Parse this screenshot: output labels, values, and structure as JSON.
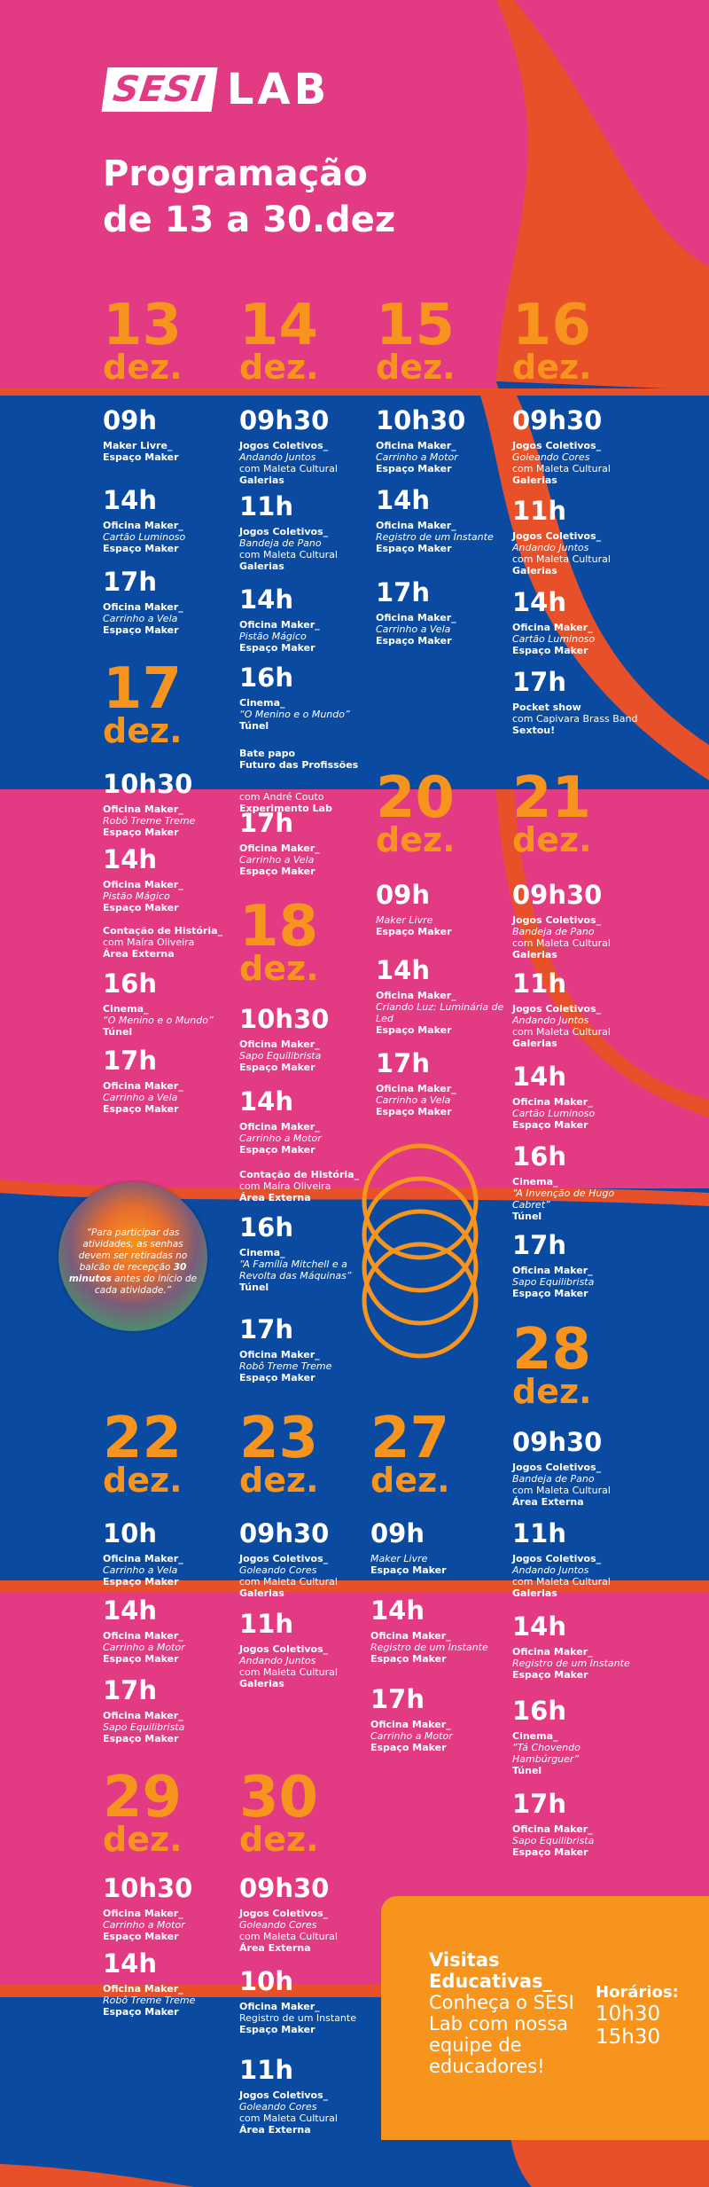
{
  "logo": {
    "sesi": "SESI",
    "lab": "LAB"
  },
  "title": {
    "line1": "Programação",
    "line2": "de 13 a 30.dez"
  },
  "month": "dez.",
  "days": [
    {
      "n": "13"
    },
    {
      "n": "14"
    },
    {
      "n": "15"
    },
    {
      "n": "16"
    },
    {
      "n": "17"
    },
    {
      "n": "18"
    },
    {
      "n": "20"
    },
    {
      "n": "21"
    },
    {
      "n": "22"
    },
    {
      "n": "23"
    },
    {
      "n": "27"
    },
    {
      "n": "28"
    },
    {
      "n": "29"
    },
    {
      "n": "30"
    }
  ],
  "events": [
    {
      "t": "09h",
      "a": "Maker Livre_",
      "d": "",
      "w": "",
      "p": "Espaço Maker"
    },
    {
      "t": "14h",
      "a": "Oficina Maker_",
      "d": "Cartão Luminoso",
      "w": "",
      "p": "Espaço Maker"
    },
    {
      "t": "17h",
      "a": "Oficina Maker_",
      "d": "Carrinho a Vela",
      "w": "",
      "p": "Espaço Maker"
    },
    {
      "t": "09h30",
      "a": "Jogos Coletivos_",
      "d": "Andando Juntos",
      "w": "com Maleta Cultural",
      "p": "Galerias"
    },
    {
      "t": "11h",
      "a": "Jogos Coletivos_",
      "d": "Bandeja de Pano",
      "w": "com Maleta Cultural",
      "p": "Galerias"
    },
    {
      "t": "14h",
      "a": "Oficina Maker_",
      "d": "Pistão Mágico",
      "w": "",
      "p": "Espaço Maker"
    },
    {
      "t": "16h",
      "a": "Cinema_",
      "d": "“O Menino e o Mundo”",
      "w": "",
      "p": "Túnel"
    },
    {
      "t": "",
      "a": "Bate papo",
      "d": "",
      "w": "",
      "p": "Futuro das Profissões"
    },
    {
      "t": "10h30",
      "a": "Oficina Maker_",
      "d": "Carrinho a Motor",
      "w": "",
      "p": "Espaço Maker"
    },
    {
      "t": "14h",
      "a": "Oficina Maker_",
      "d": "Registro de um Instante",
      "w": "",
      "p": "Espaço Maker"
    },
    {
      "t": "17h",
      "a": "Oficina Maker_",
      "d": "Carrinho a Vela",
      "w": "",
      "p": "Espaço Maker"
    },
    {
      "t": "09h30",
      "a": "Jogos Coletivos_",
      "d": "Goleando Cores",
      "w": "com Maleta Cultural",
      "p": "Galerias"
    },
    {
      "t": "11h",
      "a": "Jogos Coletivos_",
      "d": "Andando Juntos",
      "w": "com Maleta Cultural",
      "p": "Galerias"
    },
    {
      "t": "14h",
      "a": "Oficina Maker_",
      "d": "Cartão Luminoso",
      "w": "",
      "p": "Espaço Maker"
    },
    {
      "t": "17h",
      "a": "Pocket show",
      "d": "",
      "w": "com Capivara Brass Band",
      "p": "Sextou!"
    },
    {
      "t": "10h30",
      "a": "Oficina Maker_",
      "d": "Robô Treme Treme",
      "w": "",
      "p": "Espaço Maker"
    },
    {
      "t": "14h",
      "a": "Oficina Maker_",
      "d": "Pistão Mágico",
      "w": "",
      "p": "Espaço Maker"
    },
    {
      "t": "",
      "a": "Contação de História_",
      "d": "",
      "w": "com Maíra Oliveira",
      "p": "Área Externa"
    },
    {
      "t": "16h",
      "a": "Cinema_",
      "d": "“O Menino e o Mundo”",
      "w": "",
      "p": "Túnel"
    },
    {
      "t": "17h",
      "a": "Oficina Maker_",
      "d": "Carrinho a Vela",
      "w": "",
      "p": "Espaço Maker"
    },
    {
      "t": "17h",
      "a": "Oficina Maker_",
      "d": "Carrinho a Vela",
      "w": "",
      "p": "Espaço Maker"
    },
    {
      "t": "10h30",
      "a": "Oficina Maker_",
      "d": "Sapo Equilibrista",
      "w": "",
      "p": "Espaço Maker"
    },
    {
      "t": "14h",
      "a": "Oficina Maker_",
      "d": "Carrinho a Motor",
      "w": "",
      "p": "Espaço Maker"
    },
    {
      "t": "",
      "a": "Contação de História_",
      "d": "",
      "w": "com Maíra Oliveira",
      "p": "Área Externa"
    },
    {
      "t": "16h",
      "a": "Cinema_",
      "d": "“A Família Mitchell e a Revolta das Máquinas”",
      "w": "",
      "p": "Túnel"
    },
    {
      "t": "17h",
      "a": "Oficina Maker_",
      "d": "Robô Treme Treme",
      "w": "",
      "p": "Espaço Maker"
    },
    {
      "t": "09h",
      "a": "",
      "d": "Maker Livre",
      "w": "",
      "p": "Espaço Maker"
    },
    {
      "t": "14h",
      "a": "Oficina Maker_",
      "d": "Criando Luz: Luminária de Led",
      "w": "",
      "p": "Espaço Maker"
    },
    {
      "t": "17h",
      "a": "Oficina Maker_",
      "d": "Carrinho a Vela",
      "w": "",
      "p": "Espaço Maker"
    },
    {
      "t": "09h30",
      "a": "Jogos Coletivos_",
      "d": "Bandeja de Pano",
      "w": "com Maleta Cultural",
      "p": "Galerias"
    },
    {
      "t": "11h",
      "a": "Jogos Coletivos_",
      "d": "Andando Juntos",
      "w": "com Maleta Cultural",
      "p": "Galerias"
    },
    {
      "t": "14h",
      "a": "Oficina Maker_",
      "d": "Cartão Luminoso",
      "w": "",
      "p": "Espaço Maker"
    },
    {
      "t": "16h",
      "a": "Cinema_",
      "d": "“A Invenção de Hugo Cabret”",
      "w": "",
      "p": "Túnel"
    },
    {
      "t": "17h",
      "a": "Oficina Maker_",
      "d": "Sapo Equilibrista",
      "w": "",
      "p": "Espaço Maker"
    },
    {
      "t": "09h30",
      "a": "Jogos Coletivos_",
      "d": "Bandeja de Pano",
      "w": "com Maleta Cultural",
      "p": "Área Externa"
    },
    {
      "t": "11h",
      "a": "Jogos Coletivos_",
      "d": "Andando Juntos",
      "w": "com Maleta Cultural",
      "p": "Galerias"
    },
    {
      "t": "14h",
      "a": "Oficina Maker_",
      "d": "Registro de um Instante",
      "w": "",
      "p": "Espaço Maker"
    },
    {
      "t": "16h",
      "a": "Cinema_",
      "d": "“Tá Chovendo Hambúrguer”",
      "w": "",
      "p": "Túnel"
    },
    {
      "t": "17h",
      "a": "Oficina Maker_",
      "d": "Sapo Equilibrista",
      "w": "",
      "p": "Espaço Maker"
    },
    {
      "t": "10h",
      "a": "Oficina Maker_",
      "d": "Carrinho a Vela",
      "w": "",
      "p": "Espaço Maker"
    },
    {
      "t": "14h",
      "a": "Oficina Maker_",
      "d": "Carrinho a Motor",
      "w": "",
      "p": "Espaço Maker"
    },
    {
      "t": "17h",
      "a": "Oficina Maker_",
      "d": "Sapo Equilibrista",
      "w": "",
      "p": "Espaço Maker"
    },
    {
      "t": "09h30",
      "a": "Jogos Coletivos_",
      "d": "Goleando Cores",
      "w": "com Maleta Cultural",
      "p": "Galerias"
    },
    {
      "t": "11h",
      "a": "Jogos Coletivos_",
      "d": "Andando Juntos",
      "w": "com Maleta Cultural",
      "p": "Galerias"
    },
    {
      "t": "09h",
      "a": "",
      "d": "Maker Livre",
      "w": "",
      "p": "Espaço Maker"
    },
    {
      "t": "14h",
      "a": "Oficina Maker_",
      "d": "Registro de um Instante",
      "w": "",
      "p": "Espaço Maker"
    },
    {
      "t": "17h",
      "a": "Oficina Maker_",
      "d": "Carrinho a Motor",
      "w": "",
      "p": "Espaço Maker"
    },
    {
      "t": "10h30",
      "a": "Oficina Maker_",
      "d": "Carrinho a Motor",
      "w": "",
      "p": "Espaço Maker"
    },
    {
      "t": "14h",
      "a": "Oficina Maker_",
      "d": "Robô Treme Treme",
      "w": "",
      "p": "Espaço Maker"
    },
    {
      "t": "09h30",
      "a": "Jogos Coletivos_",
      "d": "Goleando Cores",
      "w": "com Maleta Cultural",
      "p": "Área Externa"
    },
    {
      "t": "10h",
      "a": "Oficina Maker_",
      "d": "",
      "w": "Registro de um Instante",
      "p": "Espaço Maker"
    },
    {
      "t": "11h",
      "a": "Jogos Coletivos_",
      "d": "Goleando Cores",
      "w": "com Maleta Cultural",
      "p": "Área Externa"
    }
  ],
  "talk": {
    "l1": "com André Couto",
    "l2": "Experimento Lab"
  },
  "notice": {
    "pre": "“Para participar das atividades, as senhas devem ser retiradas no balcão de recepção ",
    "bold": "30 minutos",
    "post": " antes do início de cada atividade.”"
  },
  "visit": {
    "title": "Visitas Educativas_",
    "body": "Conheça o SESI Lab com nossa equipe de educadores!",
    "hours_label": "Horários:",
    "h1": "10h30",
    "h2": "15h30"
  },
  "colors": {
    "pink": "#e23b84",
    "orange": "#f7941d",
    "blue": "#0a4aa0",
    "red": "#e8502a"
  }
}
